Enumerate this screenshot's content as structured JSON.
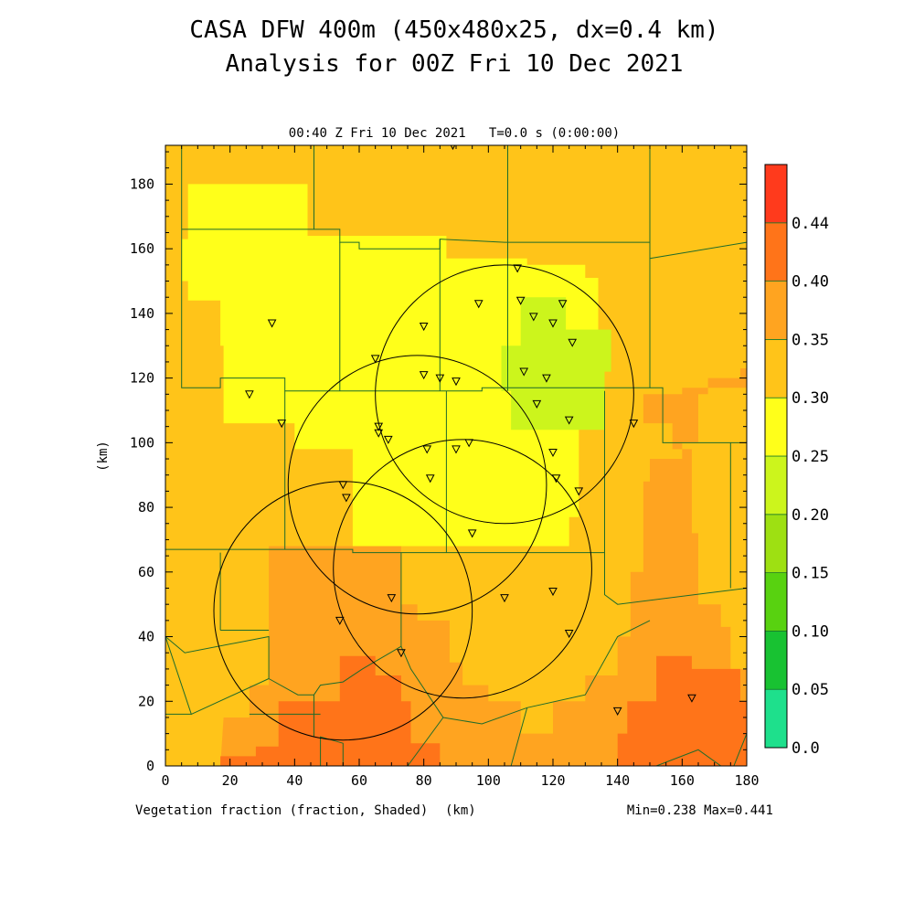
{
  "header": {
    "title_line1": "CASA DFW 400m (450x480x25, dx=0.4 km)",
    "title_line2": "Analysis for 00Z Fri 10 Dec 2021",
    "plot_time": "00:40 Z Fri 10 Dec 2021   T=0.0 s (0:00:00)"
  },
  "footer": {
    "field_label": "Vegetation fraction (fraction, Shaded)",
    "x_unit": "(km)",
    "minmax": "Min=0.238 Max=0.441"
  },
  "chart_data": {
    "type": "heatmap",
    "title": "CASA DFW 400m (450x480x25, dx=0.4 km)",
    "subtitle": "Analysis for 00Z Fri 10 Dec 2021",
    "xlabel": "(km)",
    "ylabel": "(km)",
    "xlim": [
      0,
      180
    ],
    "ylim": [
      0,
      192
    ],
    "x_ticks": [
      0,
      20,
      40,
      60,
      80,
      100,
      120,
      140,
      160,
      180
    ],
    "y_ticks": [
      0,
      20,
      40,
      60,
      80,
      100,
      120,
      140,
      160,
      180
    ],
    "colorbar": {
      "levels": [
        "0.0",
        "0.05",
        "0.10",
        "0.15",
        "0.20",
        "0.25",
        "0.30",
        "0.35",
        "0.40",
        "0.44"
      ],
      "colors": [
        "#1ee08c",
        "#18c232",
        "#58d210",
        "#9ee012",
        "#ccf51c",
        "#ffff1a",
        "#ffc419",
        "#ffa420",
        "#ff7419",
        "#ff3a1c"
      ]
    },
    "field_min": 0.238,
    "field_max": 0.441,
    "regions": [
      {
        "value": 0.32,
        "polygon": [
          [
            0,
            0
          ],
          [
            180,
            0
          ],
          [
            180,
            192
          ],
          [
            0,
            192
          ]
        ]
      },
      {
        "value": 0.28,
        "polygon": [
          [
            7,
            180
          ],
          [
            44,
            180
          ],
          [
            44,
            164
          ],
          [
            87,
            164
          ],
          [
            87,
            157
          ],
          [
            112,
            157
          ],
          [
            112,
            155
          ],
          [
            130,
            155
          ],
          [
            130,
            151
          ],
          [
            134,
            151
          ],
          [
            134,
            114
          ],
          [
            128,
            114
          ],
          [
            128,
            77
          ],
          [
            125,
            77
          ],
          [
            125,
            68
          ],
          [
            58,
            68
          ],
          [
            58,
            98
          ],
          [
            40,
            98
          ],
          [
            40,
            106
          ],
          [
            18,
            106
          ],
          [
            18,
            130
          ],
          [
            17,
            130
          ],
          [
            17,
            144
          ],
          [
            7,
            144
          ],
          [
            7,
            150
          ],
          [
            5,
            150
          ],
          [
            5,
            163
          ],
          [
            7,
            163
          ]
        ]
      },
      {
        "value": 0.24,
        "polygon": [
          [
            110,
            145
          ],
          [
            124,
            145
          ],
          [
            124,
            135
          ],
          [
            138,
            135
          ],
          [
            138,
            122
          ],
          [
            136,
            122
          ],
          [
            136,
            104
          ],
          [
            107,
            104
          ],
          [
            107,
            116
          ],
          [
            104,
            116
          ],
          [
            104,
            130
          ],
          [
            110,
            130
          ]
        ]
      },
      {
        "value": 0.37,
        "polygon": [
          [
            17,
            0
          ],
          [
            180,
            0
          ],
          [
            180,
            30
          ],
          [
            175,
            30
          ],
          [
            175,
            43
          ],
          [
            172,
            43
          ],
          [
            172,
            50
          ],
          [
            165,
            50
          ],
          [
            165,
            72
          ],
          [
            163,
            72
          ],
          [
            163,
            98
          ],
          [
            157,
            98
          ],
          [
            157,
            106
          ],
          [
            148,
            106
          ],
          [
            148,
            115
          ],
          [
            160,
            115
          ],
          [
            160,
            117
          ],
          [
            180,
            117
          ],
          [
            180,
            123
          ],
          [
            178,
            123
          ],
          [
            178,
            120
          ],
          [
            168,
            120
          ],
          [
            168,
            115
          ],
          [
            165,
            115
          ],
          [
            165,
            100
          ],
          [
            160,
            100
          ],
          [
            160,
            95
          ],
          [
            150,
            95
          ],
          [
            150,
            88
          ],
          [
            148,
            88
          ],
          [
            148,
            60
          ],
          [
            144,
            60
          ],
          [
            144,
            40
          ],
          [
            140,
            40
          ],
          [
            140,
            28
          ],
          [
            130,
            28
          ],
          [
            130,
            20
          ],
          [
            120,
            20
          ],
          [
            120,
            10
          ],
          [
            110,
            10
          ],
          [
            110,
            20
          ],
          [
            100,
            20
          ],
          [
            100,
            25
          ],
          [
            92,
            25
          ],
          [
            92,
            32
          ],
          [
            88,
            32
          ],
          [
            88,
            45
          ],
          [
            78,
            45
          ],
          [
            78,
            50
          ],
          [
            73,
            50
          ],
          [
            73,
            68
          ],
          [
            32,
            68
          ],
          [
            32,
            25
          ],
          [
            26,
            25
          ],
          [
            26,
            15
          ],
          [
            18,
            15
          ]
        ]
      },
      {
        "value": 0.42,
        "polygon": [
          [
            17,
            0
          ],
          [
            85,
            0
          ],
          [
            85,
            7
          ],
          [
            76,
            7
          ],
          [
            76,
            20
          ],
          [
            73,
            20
          ],
          [
            73,
            28
          ],
          [
            65,
            28
          ],
          [
            65,
            34
          ],
          [
            54,
            34
          ],
          [
            54,
            20
          ],
          [
            35,
            20
          ],
          [
            35,
            6
          ],
          [
            28,
            6
          ],
          [
            28,
            3
          ],
          [
            17,
            3
          ]
        ]
      },
      {
        "value": 0.42,
        "polygon": [
          [
            140,
            0
          ],
          [
            180,
            0
          ],
          [
            180,
            20
          ],
          [
            178,
            20
          ],
          [
            178,
            30
          ],
          [
            163,
            30
          ],
          [
            163,
            34
          ],
          [
            152,
            34
          ],
          [
            152,
            20
          ],
          [
            143,
            20
          ],
          [
            143,
            10
          ],
          [
            140,
            10
          ]
        ]
      }
    ],
    "range_rings": [
      {
        "center_x": 55,
        "center_y": 48,
        "radius": 40
      },
      {
        "center_x": 78,
        "center_y": 87,
        "radius": 40
      },
      {
        "center_x": 105,
        "center_y": 115,
        "radius": 40
      },
      {
        "center_x": 92,
        "center_y": 61,
        "radius": 40
      }
    ],
    "stations": [
      [
        89,
        192
      ],
      [
        109,
        154
      ],
      [
        97,
        143
      ],
      [
        110,
        144
      ],
      [
        114,
        139
      ],
      [
        123,
        143
      ],
      [
        80,
        136
      ],
      [
        120,
        137
      ],
      [
        126,
        131
      ],
      [
        33,
        137
      ],
      [
        65,
        126
      ],
      [
        80,
        121
      ],
      [
        85,
        120
      ],
      [
        90,
        119
      ],
      [
        111,
        122
      ],
      [
        118,
        120
      ],
      [
        26,
        115
      ],
      [
        115,
        112
      ],
      [
        36,
        106
      ],
      [
        66,
        105
      ],
      [
        66,
        103
      ],
      [
        69,
        101
      ],
      [
        125,
        107
      ],
      [
        145,
        106
      ],
      [
        81,
        98
      ],
      [
        90,
        98
      ],
      [
        94,
        100
      ],
      [
        120,
        97
      ],
      [
        82,
        89
      ],
      [
        55,
        87
      ],
      [
        121,
        89
      ],
      [
        128,
        85
      ],
      [
        56,
        83
      ],
      [
        95,
        72
      ],
      [
        70,
        52
      ],
      [
        105,
        52
      ],
      [
        120,
        54
      ],
      [
        54,
        45
      ],
      [
        125,
        41
      ],
      [
        73,
        35
      ],
      [
        140,
        17
      ],
      [
        163,
        21
      ]
    ],
    "county_lines": [
      [
        [
          5,
          192
        ],
        [
          5,
          166
        ]
      ],
      [
        [
          5,
          166
        ],
        [
          54,
          166
        ],
        [
          54,
          162
        ],
        [
          60,
          162
        ],
        [
          60,
          160
        ],
        [
          85,
          160
        ],
        [
          85,
          163
        ],
        [
          105,
          162
        ],
        [
          150,
          162
        ],
        [
          150,
          157
        ],
        [
          180,
          162
        ]
      ],
      [
        [
          5,
          166
        ],
        [
          5,
          117
        ],
        [
          17,
          117
        ],
        [
          17,
          120
        ],
        [
          37,
          120
        ],
        [
          37,
          116
        ],
        [
          98,
          116
        ],
        [
          98,
          117
        ],
        [
          150,
          117
        ],
        [
          150,
          192
        ]
      ],
      [
        [
          150,
          117
        ],
        [
          154,
          117
        ],
        [
          154,
          100
        ],
        [
          180,
          100
        ]
      ],
      [
        [
          46,
          192
        ],
        [
          46,
          166
        ]
      ],
      [
        [
          54,
          162
        ],
        [
          54,
          116
        ]
      ],
      [
        [
          106,
          192
        ],
        [
          106,
          162
        ]
      ],
      [
        [
          85,
          163
        ],
        [
          85,
          116
        ]
      ],
      [
        [
          106,
          162
        ],
        [
          106,
          116
        ]
      ],
      [
        [
          37,
          116
        ],
        [
          37,
          67
        ]
      ],
      [
        [
          0,
          67
        ],
        [
          58,
          67
        ],
        [
          58,
          66
        ],
        [
          136,
          66
        ]
      ],
      [
        [
          87,
          116
        ],
        [
          87,
          66
        ]
      ],
      [
        [
          136,
          116
        ],
        [
          136,
          53
        ],
        [
          140,
          50
        ],
        [
          180,
          55
        ]
      ],
      [
        [
          175,
          100
        ],
        [
          175,
          55
        ]
      ],
      [
        [
          0,
          67
        ],
        [
          0,
          40
        ],
        [
          6,
          35
        ],
        [
          32,
          40
        ],
        [
          32,
          27
        ],
        [
          41,
          22
        ],
        [
          46,
          22
        ],
        [
          48,
          25
        ],
        [
          55,
          26
        ],
        [
          61,
          30
        ],
        [
          73,
          37
        ],
        [
          76,
          30
        ],
        [
          86,
          15
        ],
        [
          98,
          13
        ],
        [
          112,
          18
        ],
        [
          130,
          22
        ],
        [
          140,
          40
        ],
        [
          150,
          45
        ]
      ],
      [
        [
          73,
          37
        ],
        [
          73,
          66
        ]
      ],
      [
        [
          0,
          40
        ],
        [
          8,
          16
        ],
        [
          32,
          27
        ]
      ],
      [
        [
          0,
          16
        ],
        [
          8,
          16
        ]
      ],
      [
        [
          17,
          42
        ],
        [
          17,
          66
        ]
      ],
      [
        [
          17,
          42
        ],
        [
          32,
          42
        ]
      ],
      [
        [
          26,
          16
        ],
        [
          48,
          16
        ]
      ],
      [
        [
          46,
          22
        ],
        [
          46,
          9
        ]
      ],
      [
        [
          48,
          0
        ],
        [
          48,
          9
        ],
        [
          55,
          7
        ],
        [
          55,
          0
        ]
      ],
      [
        [
          86,
          15
        ],
        [
          75,
          0
        ]
      ],
      [
        [
          112,
          18
        ],
        [
          107,
          0
        ]
      ],
      [
        [
          176,
          0
        ],
        [
          180,
          10
        ]
      ],
      [
        [
          152,
          0
        ],
        [
          165,
          5
        ],
        [
          172,
          0
        ]
      ]
    ]
  }
}
